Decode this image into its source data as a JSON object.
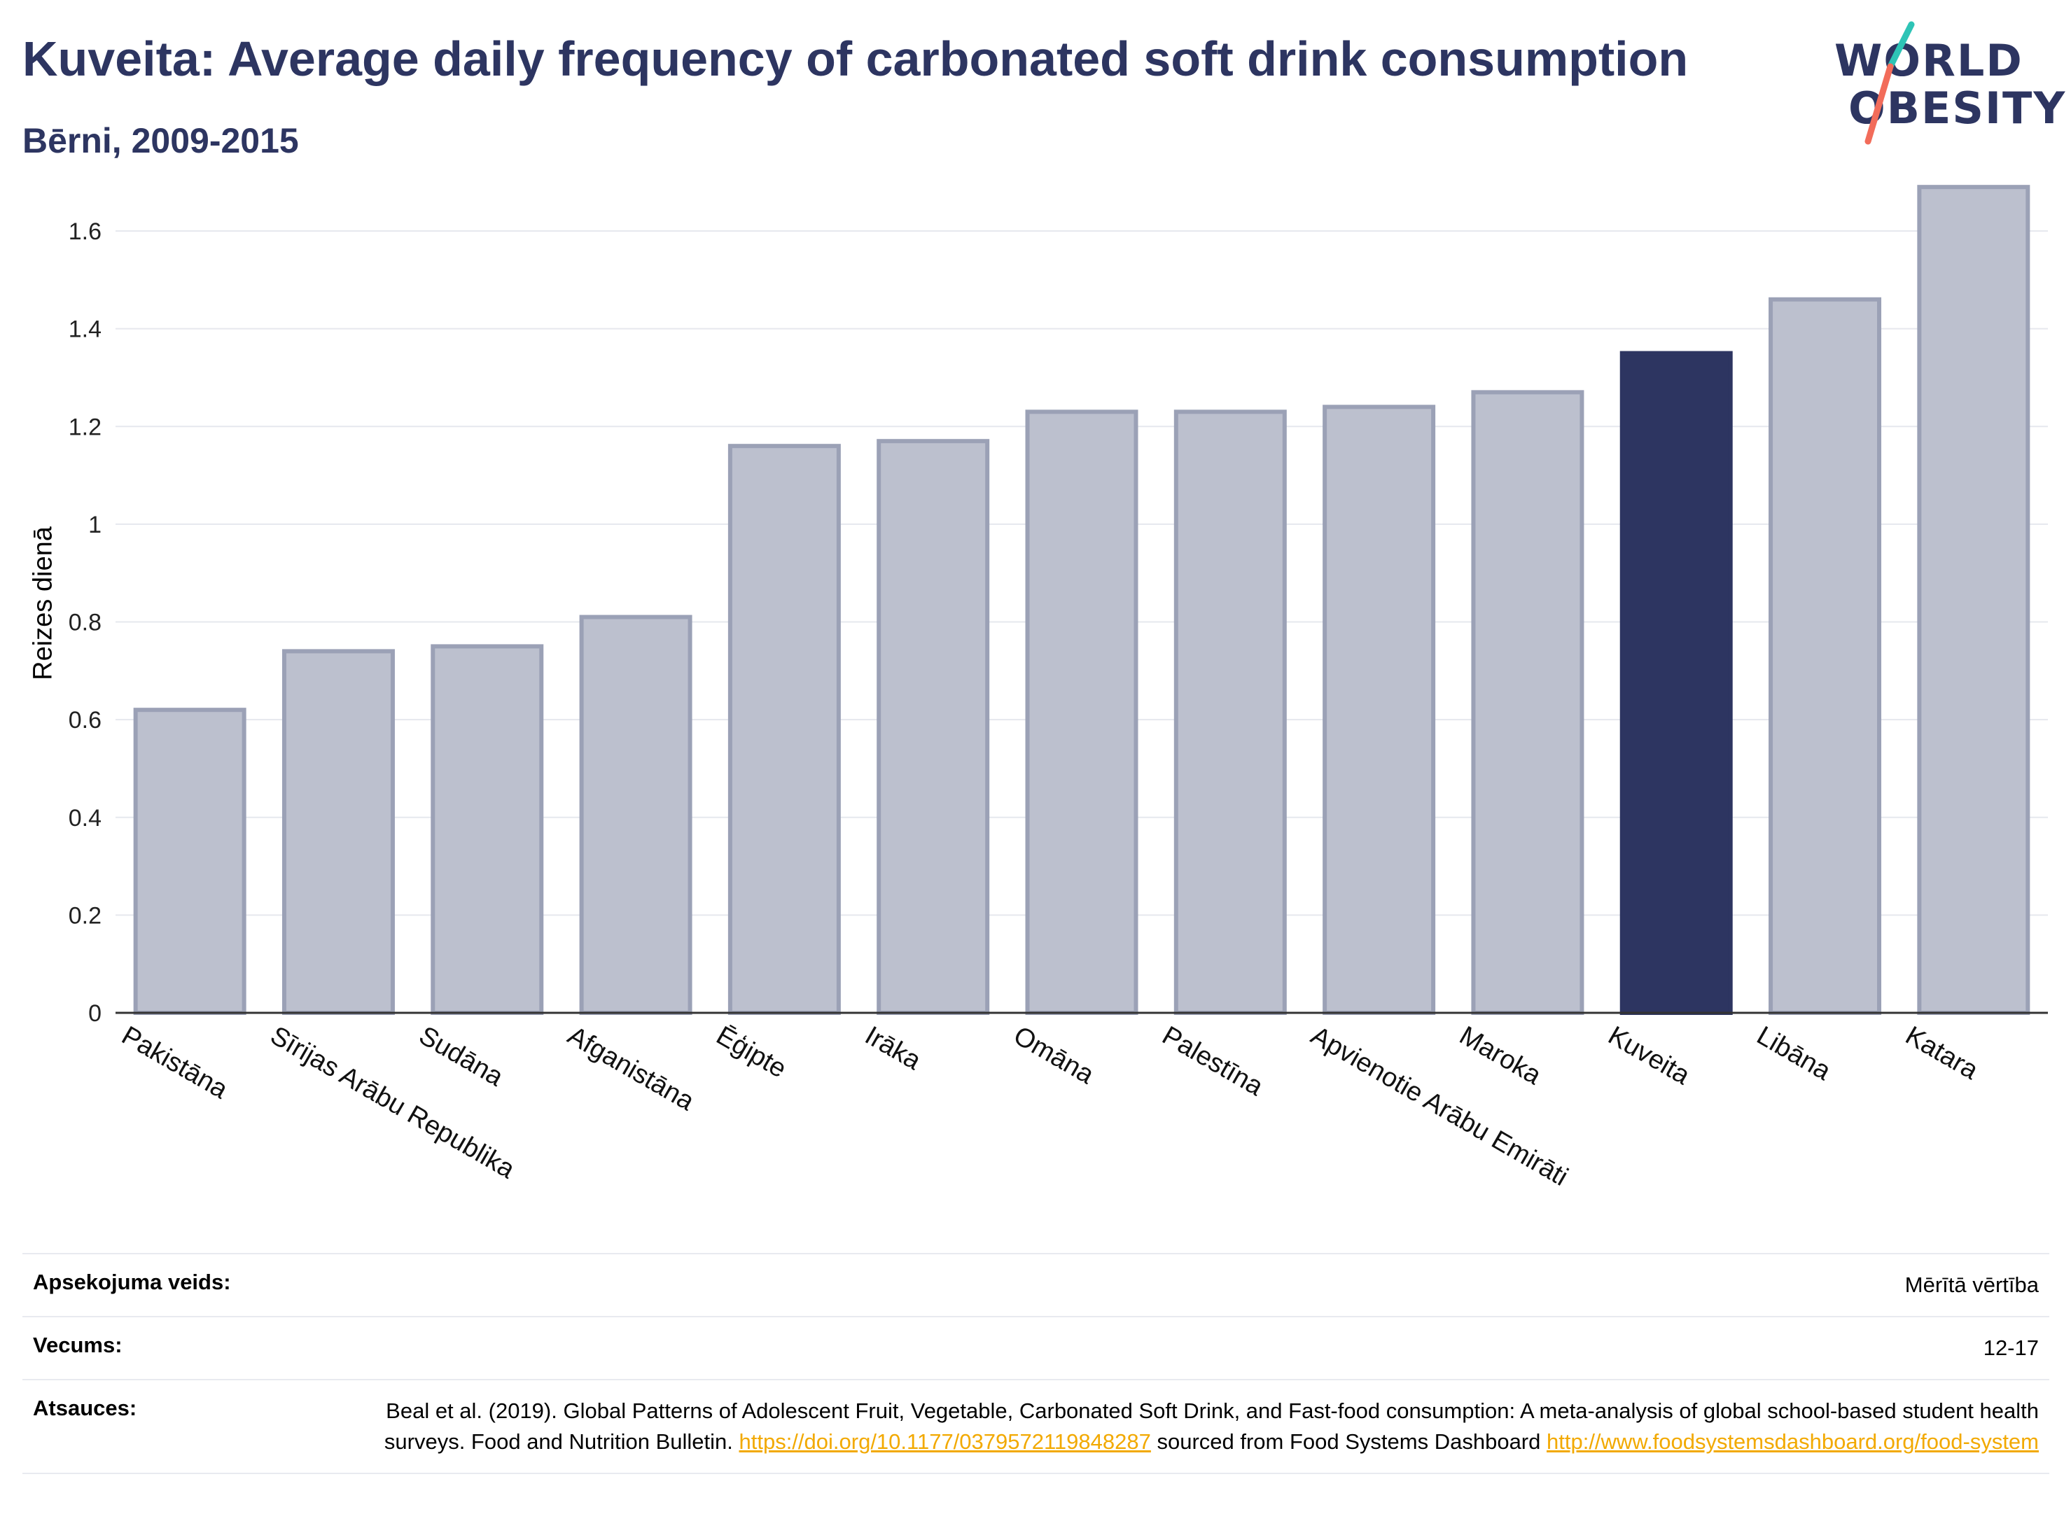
{
  "header": {
    "title": "Kuveita: Average daily frequency of carbonated soft drink consumption",
    "subtitle": "Bērni, 2009-2015"
  },
  "logo": {
    "line1": "WORLD",
    "line2": "OBESITY",
    "accent_colors": [
      "#2ec4b6",
      "#f26c5a"
    ]
  },
  "colors": {
    "highlight": "#2d3561",
    "bar_fill": "#bcc0ce",
    "bar_stroke": "#9ba1b6",
    "grid": "#e6e8ee",
    "axis": "#333333",
    "link": "#f2a900"
  },
  "chart_data": {
    "type": "bar",
    "title": "Kuveita: Average daily frequency of carbonated soft drink consumption",
    "subtitle": "Bērni, 2009-2015",
    "xlabel": "",
    "ylabel": "Reizes dienā",
    "categories": [
      "Pakistāna",
      "Sīrijas Arābu Republika",
      "Sudāna",
      "Afganistāna",
      "Ēģipte",
      "Irāka",
      "Omāna",
      "Palestīna",
      "Apvienotie Arābu Emirāti",
      "Maroka",
      "Kuveita",
      "Libāna",
      "Katara"
    ],
    "values": [
      0.62,
      0.74,
      0.75,
      0.81,
      1.16,
      1.17,
      1.23,
      1.23,
      1.24,
      1.27,
      1.35,
      1.46,
      1.69
    ],
    "highlight": "Kuveita",
    "ylim": [
      0,
      1.75
    ],
    "yticks": [
      0,
      0.2,
      0.4,
      0.6,
      0.8,
      1,
      1.2,
      1.4,
      1.6
    ],
    "ytick_labels": [
      "0",
      "0.2",
      "0.4",
      "0.6",
      "0.8",
      "1",
      "1.2",
      "1.4",
      "1.6"
    ],
    "grid": true,
    "legend": "none"
  },
  "meta": {
    "rows": [
      {
        "label": "Apsekojuma veids:",
        "value": "Mērītā vērtība"
      },
      {
        "label": "Vecums:",
        "value": "12-17"
      }
    ],
    "sources": {
      "label": "Atsauces:",
      "text1": "Beal et al. (2019). Global Patterns of Adolescent Fruit, Vegetable, Carbonated Soft Drink, and Fast-food consumption: A meta-analysis of global school-based student health surveys. Food and Nutrition Bulletin. ",
      "link1": "https://doi.org/10.1177/0379572119848287",
      "text2": " sourced from Food Systems Dashboard ",
      "link2": "http://www.foodsystemsdashboard.org/food-system"
    }
  }
}
